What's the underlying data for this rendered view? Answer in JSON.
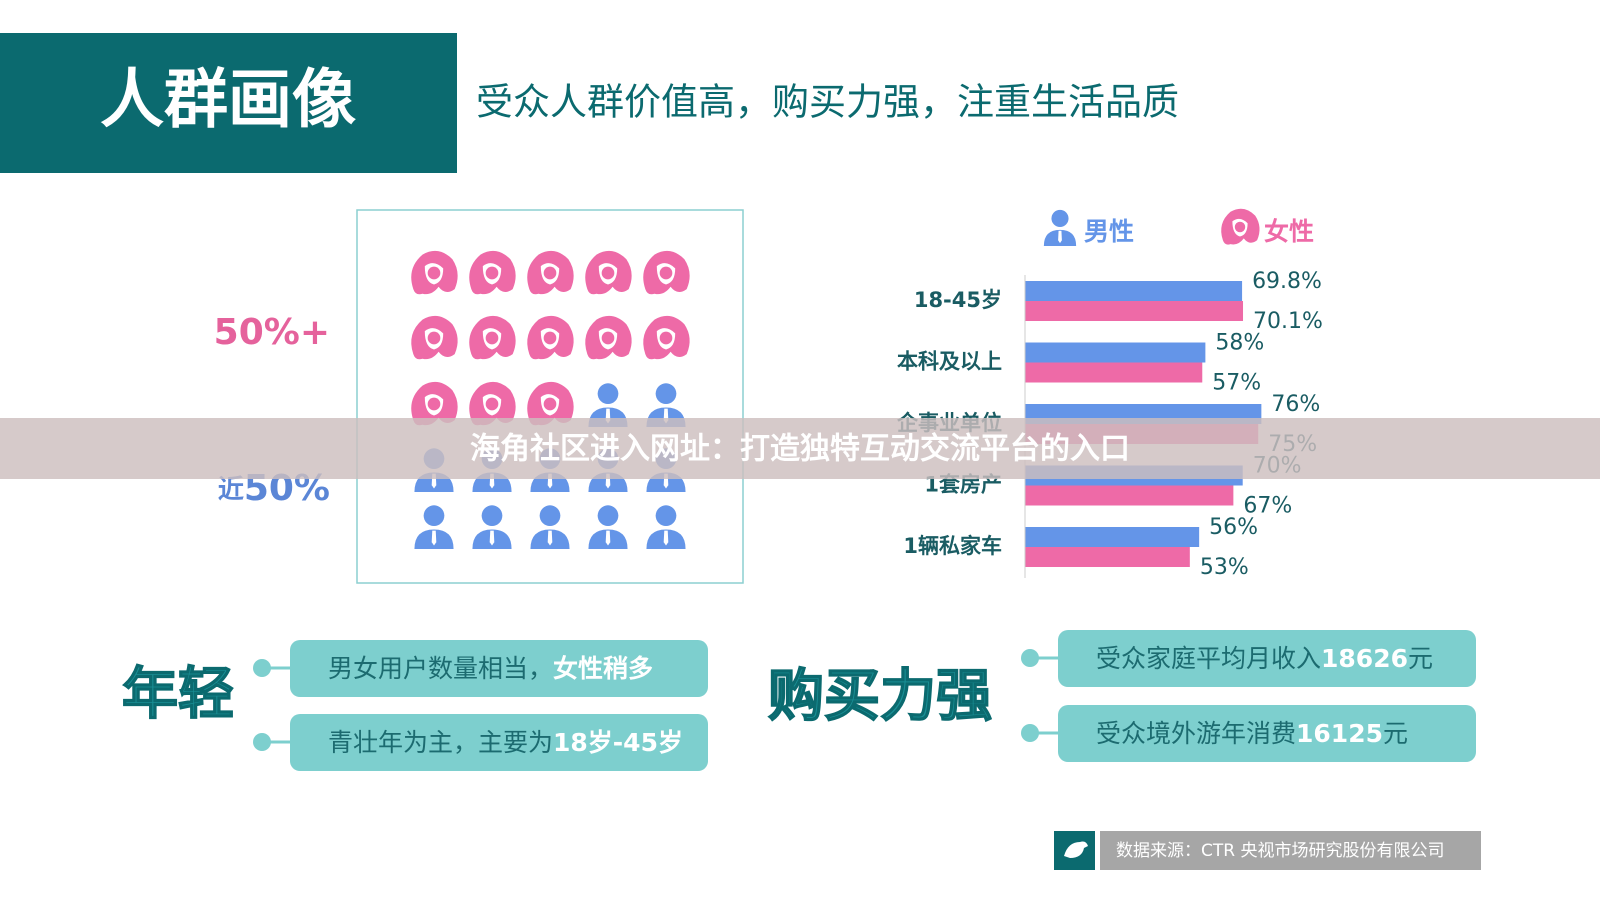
{
  "header": {
    "title": "人群画像",
    "subtitle": "受众人群价值高，购买力强，注重生活品质"
  },
  "people": {
    "female_label": "50%+",
    "male_prefix": "近",
    "male_label": "50%"
  },
  "chart_data": {
    "type": "bar",
    "orientation": "horizontal",
    "categories": [
      "18-45岁",
      "本科及以上",
      "企事业单位",
      "1套房产",
      "1辆私家车"
    ],
    "series": [
      {
        "name": "男性",
        "color": "#6495e8",
        "values": [
          69.8,
          58,
          76,
          70,
          56
        ],
        "value_labels": [
          "69.8%",
          "58%",
          "76%",
          "70%",
          "56%"
        ]
      },
      {
        "name": "女性",
        "color": "#ee6aa7",
        "values": [
          70.1,
          57,
          75,
          67,
          53
        ],
        "value_labels": [
          "70.1%",
          "57%",
          "75%",
          "67%",
          "53%"
        ]
      }
    ],
    "xlim": [
      0,
      100
    ]
  },
  "callouts": {
    "young": {
      "title": "年轻",
      "items": [
        {
          "text": "男女用户数量相当，",
          "highlight": "女性稍多"
        },
        {
          "text": "青壮年为主，主要为",
          "highlight": "18岁-45岁"
        }
      ]
    },
    "spending": {
      "title": "购买力强",
      "items": [
        {
          "text": "受众家庭平均月收入",
          "highlight": "18626",
          "suffix": "元"
        },
        {
          "text": "受众境外游年消费",
          "highlight": "16125",
          "suffix": "元"
        }
      ]
    }
  },
  "source": "数据来源：CTR 央视市场研究股份有限公司",
  "banner": "海角社区进入网址：打造独特互动交流平台的入口"
}
